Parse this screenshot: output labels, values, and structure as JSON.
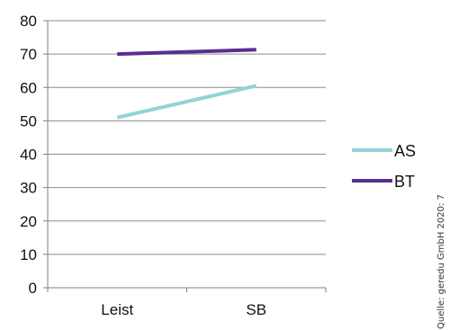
{
  "chart_data": {
    "type": "line",
    "categories": [
      "Leist",
      "SB"
    ],
    "series": [
      {
        "name": "AS",
        "values": [
          51,
          60.5
        ],
        "color": "#92d3d8"
      },
      {
        "name": "BT",
        "values": [
          70,
          71.3
        ],
        "color": "#5a2d91"
      }
    ],
    "ylim": [
      0,
      80
    ],
    "yticks": [
      0,
      10,
      20,
      30,
      40,
      50,
      60,
      70,
      80
    ],
    "grid": true,
    "legend_position": "right",
    "source_note": "Quelle: geredu GmbH 2020: 7",
    "colors": {
      "gridline": "#8c8c8c",
      "axis": "#7f7f7f"
    }
  }
}
